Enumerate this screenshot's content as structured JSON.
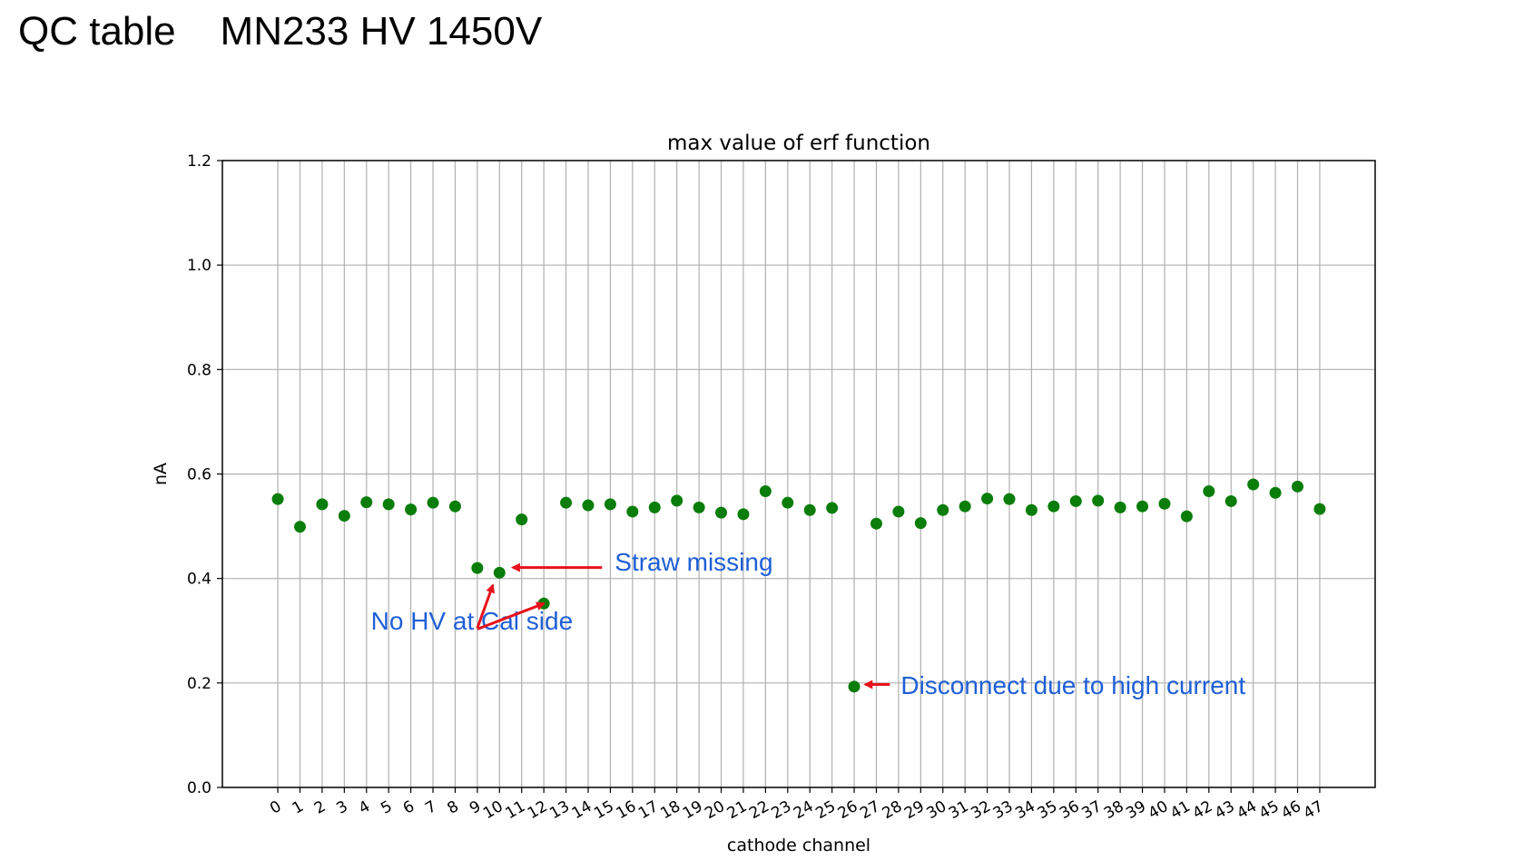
{
  "slide": {
    "title": "QC table    MN233 HV 1450V"
  },
  "colors": {
    "marker": "#0a7d0a",
    "annotation_text": "#1f5fd6",
    "arrow": "#e8121b",
    "grid": "#b0b0b0"
  },
  "chart_data": {
    "type": "scatter",
    "title": "max value of erf function",
    "xlabel": "cathode channel",
    "ylabel": "nA",
    "xlim": [
      -2.5,
      49.5
    ],
    "ylim": [
      0.0,
      1.2
    ],
    "yticks": [
      0.0,
      0.2,
      0.4,
      0.6,
      0.8,
      1.0,
      1.2
    ],
    "ytick_labels": [
      "0.0",
      "0.2",
      "0.4",
      "0.6",
      "0.8",
      "1.0",
      "1.2"
    ],
    "xticks": [
      0,
      1,
      2,
      3,
      4,
      5,
      6,
      7,
      8,
      9,
      10,
      11,
      12,
      13,
      14,
      15,
      16,
      17,
      18,
      19,
      20,
      21,
      22,
      23,
      24,
      25,
      26,
      27,
      28,
      29,
      30,
      31,
      32,
      33,
      34,
      35,
      36,
      37,
      38,
      39,
      40,
      41,
      42,
      43,
      44,
      45,
      46,
      47
    ],
    "xtick_labels": [
      "0",
      "1",
      "2",
      "3",
      "4",
      "5",
      "6",
      "7",
      "8",
      "9",
      "10",
      "11",
      "12",
      "13",
      "14",
      "15",
      "16",
      "17",
      "18",
      "19",
      "20",
      "21",
      "22",
      "23",
      "24",
      "25",
      "26",
      "27",
      "28",
      "29",
      "30",
      "31",
      "32",
      "33",
      "34",
      "35",
      "36",
      "37",
      "38",
      "39",
      "40",
      "41",
      "42",
      "43",
      "44",
      "45",
      "46",
      "47"
    ],
    "grid": true,
    "series": [
      {
        "x": [
          0,
          1,
          2,
          3,
          4,
          5,
          6,
          7,
          8,
          9,
          10,
          11,
          12,
          13,
          14,
          15,
          16,
          17,
          18,
          19,
          20,
          21,
          22,
          23,
          24,
          25,
          26,
          27,
          28,
          29,
          30,
          31,
          32,
          33,
          34,
          35,
          36,
          37,
          38,
          39,
          40,
          41,
          42,
          43,
          44,
          45,
          46,
          47
        ],
        "y": [
          0.552,
          0.499,
          0.542,
          0.52,
          0.546,
          0.542,
          0.532,
          0.545,
          0.538,
          0.42,
          0.411,
          0.513,
          0.352,
          0.545,
          0.54,
          0.542,
          0.528,
          0.536,
          0.549,
          0.536,
          0.526,
          0.523,
          0.567,
          0.545,
          0.531,
          0.535,
          0.193,
          0.505,
          0.528,
          0.506,
          0.531,
          0.538,
          0.553,
          0.552,
          0.531,
          0.538,
          0.548,
          0.549,
          0.536,
          0.538,
          0.543,
          0.519,
          0.567,
          0.548,
          0.58,
          0.564,
          0.576,
          0.533
        ]
      }
    ],
    "annotations": [
      {
        "text": "Straw missing",
        "x": 15.2,
        "y": 0.415,
        "arrows_to": [
          [
            10.6,
            0.421
          ]
        ]
      },
      {
        "text": "No HV at Cal side",
        "x": 4.2,
        "y": 0.302,
        "arrows_to": [
          [
            9.7,
            0.387
          ],
          [
            12.0,
            0.352
          ]
        ]
      },
      {
        "text": "Disconnect due to high current",
        "x": 28.1,
        "y": 0.179,
        "arrows_to": [
          [
            26.5,
            0.197
          ]
        ]
      }
    ]
  }
}
